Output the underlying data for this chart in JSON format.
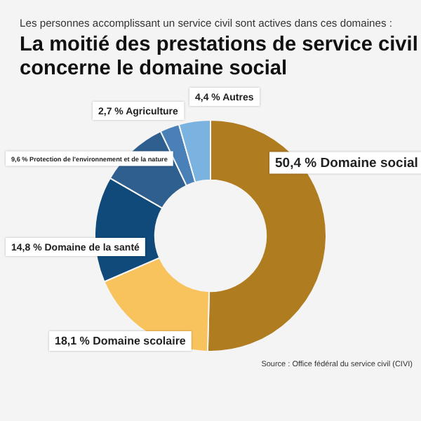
{
  "chart_data": {
    "type": "donut",
    "subtitle": "Les personnes accomplissant un service civil sont actives dans ces domaines :",
    "title": "La moitié des prestations de service civil concerne le domaine social",
    "categories": [
      "Domaine social",
      "Domaine scolaire",
      "Domaine de la santé",
      "Protection de l'environnement et de la nature",
      "Agriculture",
      "Autres"
    ],
    "values": [
      50.4,
      18.1,
      14.8,
      9.6,
      2.7,
      4.4
    ],
    "value_labels": [
      "50,4 %",
      "18,1 %",
      "14,8 %",
      "9,6 %",
      "2,7 %",
      "4,4 %"
    ],
    "colors": [
      "#b07c20",
      "#f8c25c",
      "#0f4a7a",
      "#2f5f8f",
      "#4a80b8",
      "#7ab3e0"
    ],
    "annotations": [
      "Source : Office fédéral du service civil (CIVI)"
    ]
  }
}
